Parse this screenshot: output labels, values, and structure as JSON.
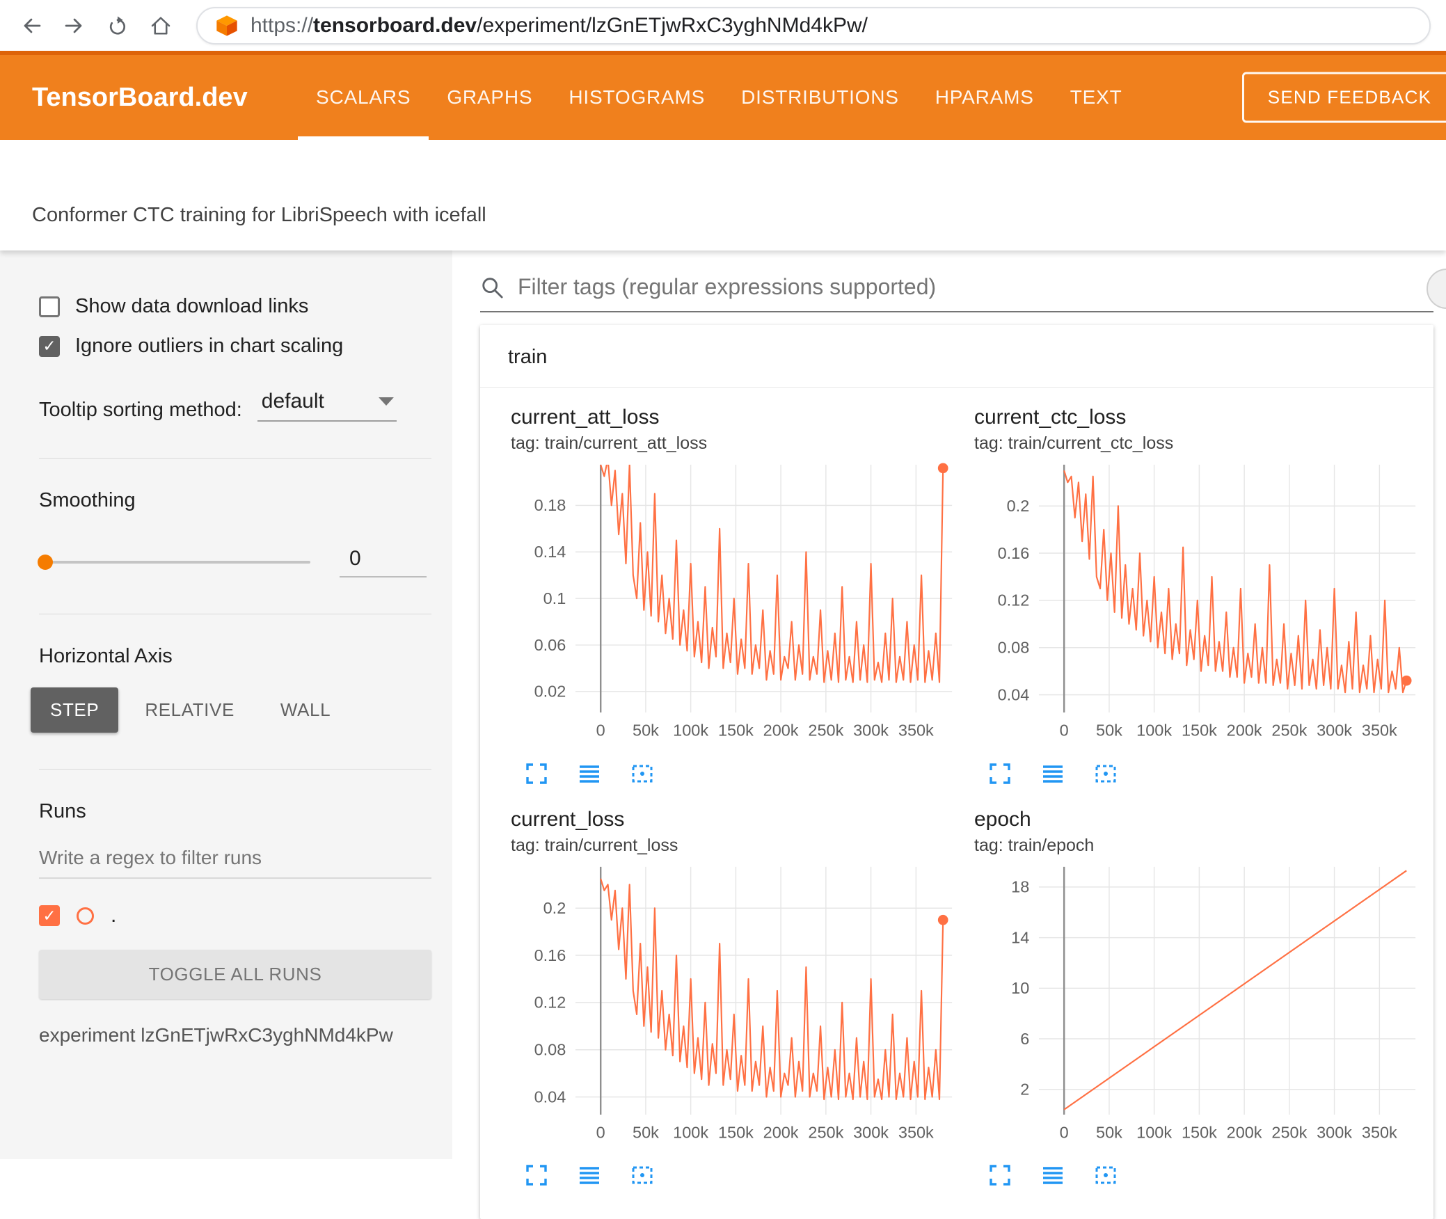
{
  "browser": {
    "url_scheme": "https://",
    "url_domain": "tensorboard.dev",
    "url_path": "/experiment/lzGnETjwRxC3yghNMd4kPw/"
  },
  "header": {
    "brand": "TensorBoard.dev",
    "tabs": [
      "SCALARS",
      "GRAPHS",
      "HISTOGRAMS",
      "DISTRIBUTIONS",
      "HPARAMS",
      "TEXT"
    ],
    "active_tab": "SCALARS",
    "feedback_button": "SEND FEEDBACK"
  },
  "experiment_bar": {
    "title": "Conformer CTC training for LibriSpeech with icefall"
  },
  "sidebar": {
    "show_download": {
      "label": "Show data download links",
      "checked": false
    },
    "ignore_outliers": {
      "label": "Ignore outliers in chart scaling",
      "checked": true
    },
    "tooltip_sort": {
      "label": "Tooltip sorting method:",
      "value": "default"
    },
    "smoothing": {
      "label": "Smoothing",
      "value": "0"
    },
    "horizontal_axis": {
      "label": "Horizontal Axis",
      "options": [
        "STEP",
        "RELATIVE",
        "WALL"
      ],
      "active": "STEP"
    },
    "runs": {
      "label": "Runs",
      "filter_placeholder": "Write a regex to filter runs",
      "run_name": ".",
      "run_checked": true,
      "toggle_button": "TOGGLE ALL RUNS",
      "experiment_caption": "experiment lzGnETjwRxC3yghNMd4kPw"
    }
  },
  "main": {
    "filter_placeholder": "Filter tags (regular expressions supported)",
    "section_title": "train",
    "chart_toolbar_icons": [
      "expand-chart",
      "y-axis-toggle",
      "fit-domain"
    ]
  },
  "colors": {
    "header_orange": "#f0801d",
    "accent_orange": "#f57c00",
    "run_color": "#ff7043",
    "icon_blue": "#2196f3"
  },
  "chart_data": [
    {
      "type": "line",
      "title": "current_att_loss",
      "tag": "tag: train/current_att_loss",
      "color": "#ff7043",
      "legend": ".",
      "x_start": 0,
      "x_end": 380000,
      "x_domain": [
        -28000,
        390000
      ],
      "x_tick_values": [
        0,
        50000,
        100000,
        150000,
        200000,
        250000,
        300000,
        350000
      ],
      "x_tick_labels": [
        "0",
        "50k",
        "100k",
        "150k",
        "200k",
        "250k",
        "300k",
        "350k"
      ],
      "ylim": [
        0.002,
        0.215
      ],
      "y_ticks": [
        0.02,
        0.06,
        0.1,
        0.14,
        0.18
      ],
      "end_dot": true,
      "values": [
        0.215,
        0.205,
        0.22,
        0.18,
        0.21,
        0.155,
        0.19,
        0.13,
        0.215,
        0.12,
        0.1,
        0.165,
        0.09,
        0.14,
        0.085,
        0.19,
        0.08,
        0.12,
        0.07,
        0.1,
        0.065,
        0.15,
        0.06,
        0.09,
        0.055,
        0.13,
        0.05,
        0.08,
        0.045,
        0.11,
        0.04,
        0.075,
        0.05,
        0.16,
        0.04,
        0.07,
        0.045,
        0.1,
        0.035,
        0.065,
        0.04,
        0.13,
        0.035,
        0.06,
        0.04,
        0.09,
        0.03,
        0.055,
        0.035,
        0.12,
        0.03,
        0.05,
        0.04,
        0.08,
        0.03,
        0.06,
        0.035,
        0.14,
        0.03,
        0.05,
        0.035,
        0.09,
        0.028,
        0.055,
        0.03,
        0.07,
        0.028,
        0.11,
        0.03,
        0.05,
        0.028,
        0.08,
        0.03,
        0.06,
        0.028,
        0.13,
        0.03,
        0.045,
        0.028,
        0.07,
        0.03,
        0.1,
        0.028,
        0.05,
        0.03,
        0.08,
        0.028,
        0.06,
        0.03,
        0.12,
        0.028,
        0.055,
        0.03,
        0.07,
        0.028,
        0.212
      ]
    },
    {
      "type": "line",
      "title": "current_ctc_loss",
      "tag": "tag: train/current_ctc_loss",
      "color": "#ff7043",
      "legend": ".",
      "x_start": 0,
      "x_end": 380000,
      "x_domain": [
        -28000,
        390000
      ],
      "x_tick_values": [
        0,
        50000,
        100000,
        150000,
        200000,
        250000,
        300000,
        350000
      ],
      "x_tick_labels": [
        "0",
        "50k",
        "100k",
        "150k",
        "200k",
        "250k",
        "300k",
        "350k"
      ],
      "ylim": [
        0.025,
        0.235
      ],
      "y_ticks": [
        0.04,
        0.08,
        0.12,
        0.16,
        0.2
      ],
      "end_dot": true,
      "values": [
        0.23,
        0.22,
        0.225,
        0.19,
        0.22,
        0.17,
        0.21,
        0.155,
        0.225,
        0.14,
        0.13,
        0.18,
        0.12,
        0.16,
        0.11,
        0.2,
        0.105,
        0.15,
        0.1,
        0.13,
        0.095,
        0.16,
        0.09,
        0.12,
        0.085,
        0.14,
        0.08,
        0.11,
        0.075,
        0.13,
        0.07,
        0.1,
        0.075,
        0.165,
        0.065,
        0.095,
        0.07,
        0.12,
        0.06,
        0.09,
        0.065,
        0.14,
        0.06,
        0.085,
        0.06,
        0.11,
        0.055,
        0.08,
        0.055,
        0.13,
        0.05,
        0.075,
        0.055,
        0.1,
        0.05,
        0.08,
        0.05,
        0.15,
        0.048,
        0.07,
        0.05,
        0.1,
        0.045,
        0.075,
        0.048,
        0.09,
        0.045,
        0.12,
        0.048,
        0.07,
        0.045,
        0.095,
        0.048,
        0.08,
        0.045,
        0.13,
        0.045,
        0.065,
        0.042,
        0.085,
        0.045,
        0.11,
        0.042,
        0.065,
        0.045,
        0.09,
        0.042,
        0.07,
        0.045,
        0.12,
        0.042,
        0.06,
        0.045,
        0.08,
        0.042,
        0.052
      ]
    },
    {
      "type": "line",
      "title": "current_loss",
      "tag": "tag: train/current_loss",
      "color": "#ff7043",
      "legend": ".",
      "x_start": 0,
      "x_end": 380000,
      "x_domain": [
        -28000,
        390000
      ],
      "x_tick_values": [
        0,
        50000,
        100000,
        150000,
        200000,
        250000,
        300000,
        350000
      ],
      "x_tick_labels": [
        "0",
        "50k",
        "100k",
        "150k",
        "200k",
        "250k",
        "300k",
        "350k"
      ],
      "ylim": [
        0.025,
        0.235
      ],
      "y_ticks": [
        0.04,
        0.08,
        0.12,
        0.16,
        0.2
      ],
      "end_dot": true,
      "values": [
        0.225,
        0.215,
        0.22,
        0.19,
        0.215,
        0.165,
        0.2,
        0.14,
        0.22,
        0.13,
        0.11,
        0.17,
        0.1,
        0.15,
        0.095,
        0.2,
        0.09,
        0.13,
        0.08,
        0.11,
        0.075,
        0.16,
        0.07,
        0.1,
        0.065,
        0.14,
        0.06,
        0.09,
        0.055,
        0.12,
        0.05,
        0.085,
        0.06,
        0.17,
        0.05,
        0.08,
        0.055,
        0.11,
        0.045,
        0.075,
        0.05,
        0.14,
        0.045,
        0.07,
        0.05,
        0.1,
        0.04,
        0.065,
        0.045,
        0.13,
        0.04,
        0.06,
        0.05,
        0.09,
        0.04,
        0.07,
        0.045,
        0.15,
        0.04,
        0.06,
        0.045,
        0.1,
        0.038,
        0.065,
        0.04,
        0.08,
        0.038,
        0.12,
        0.04,
        0.06,
        0.038,
        0.09,
        0.04,
        0.07,
        0.038,
        0.14,
        0.04,
        0.055,
        0.038,
        0.08,
        0.04,
        0.11,
        0.038,
        0.06,
        0.04,
        0.09,
        0.038,
        0.07,
        0.04,
        0.13,
        0.038,
        0.065,
        0.04,
        0.08,
        0.038,
        0.19
      ]
    },
    {
      "type": "line",
      "title": "epoch",
      "tag": "tag: train/epoch",
      "color": "#ff7043",
      "legend": ".",
      "x_start": 0,
      "x_end": 380000,
      "x_domain": [
        -28000,
        390000
      ],
      "x_tick_values": [
        0,
        50000,
        100000,
        150000,
        200000,
        250000,
        300000,
        350000
      ],
      "x_tick_labels": [
        "0",
        "50k",
        "100k",
        "150k",
        "200k",
        "250k",
        "300k",
        "350k"
      ],
      "ylim": [
        0,
        19.6
      ],
      "y_ticks": [
        2,
        6,
        10,
        14,
        18
      ],
      "end_dot": false,
      "values": [
        0.4,
        19.3
      ]
    }
  ]
}
